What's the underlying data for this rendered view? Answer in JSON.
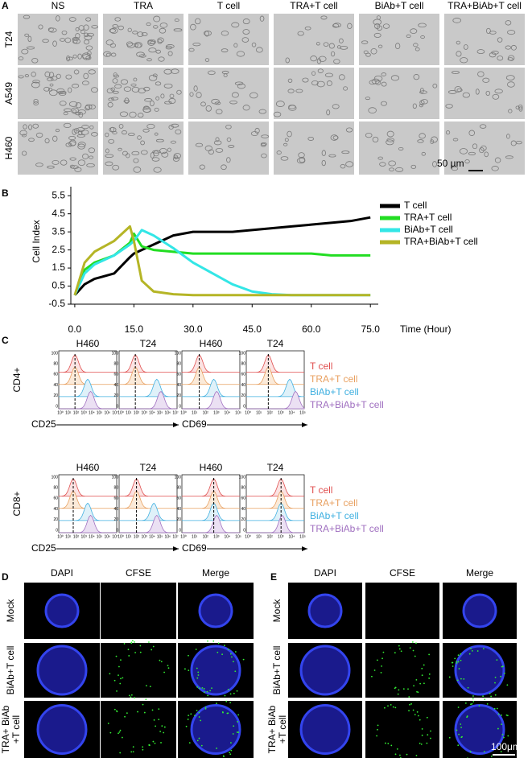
{
  "panel_labels": [
    "A",
    "B",
    "C",
    "D",
    "E"
  ],
  "panel_a": {
    "columns": [
      "NS",
      "TRA",
      "T cell",
      "TRA+T cell",
      "BiAb+T cell",
      "TRA+BiAb+T cell"
    ],
    "rows": [
      "T24",
      "A549",
      "H460"
    ],
    "scale_bar": "50 µm"
  },
  "chart_data": {
    "type": "line",
    "y_label": "Cell Index",
    "x_label": "Time (Hour)",
    "x": [
      0,
      2.5,
      5,
      10,
      14,
      15,
      17,
      20,
      25,
      30,
      35,
      40,
      45,
      50,
      55,
      60,
      65,
      70,
      75
    ],
    "series": [
      {
        "name": "T cell",
        "color": "#000000",
        "values": [
          0,
          0.6,
          0.9,
          1.2,
          2.1,
          2.3,
          2.5,
          2.8,
          3.3,
          3.5,
          3.5,
          3.5,
          3.6,
          3.7,
          3.8,
          3.9,
          4.0,
          4.1,
          4.3
        ]
      },
      {
        "name": "TRA+T cell",
        "color": "#22dd22",
        "values": [
          0,
          1.4,
          1.8,
          2.2,
          2.9,
          3.4,
          2.7,
          2.5,
          2.4,
          2.3,
          2.3,
          2.3,
          2.3,
          2.3,
          2.3,
          2.3,
          2.2,
          2.2,
          2.2
        ]
      },
      {
        "name": "BiAb+T cell",
        "color": "#33e6e6",
        "values": [
          0,
          1.2,
          1.7,
          2.2,
          2.8,
          3.0,
          3.6,
          3.3,
          2.6,
          1.8,
          1.2,
          0.6,
          0.2,
          0.05,
          0,
          0,
          0,
          0,
          0
        ]
      },
      {
        "name": "TRA+BiAb+T cell",
        "color": "#b5b526",
        "values": [
          0,
          1.8,
          2.4,
          3.0,
          3.8,
          3.0,
          0.8,
          0.2,
          0.05,
          0,
          0,
          0,
          0,
          0,
          0,
          0,
          0,
          0,
          0
        ]
      }
    ],
    "xlim": [
      -1,
      77
    ],
    "ylim": [
      -0.5,
      6
    ],
    "xticks": [
      {
        "value": 0,
        "label": "0.0"
      },
      {
        "value": 15,
        "label": "15.0"
      },
      {
        "value": 30,
        "label": "30.0"
      },
      {
        "value": 45,
        "label": "45.0"
      },
      {
        "value": 60,
        "label": "60.0"
      },
      {
        "value": 75,
        "label": "75.0"
      }
    ],
    "yticks": [
      -0.5,
      0.5,
      1.5,
      2.5,
      3.5,
      4.5,
      5.5
    ]
  },
  "panel_c": {
    "row_labels": [
      "CD4+",
      "CD8+"
    ],
    "columns": [
      "H460",
      "T24",
      "H460",
      "T24"
    ],
    "x_axes": [
      "CD25",
      "CD69"
    ],
    "legend": [
      "T cell",
      "TRA+T cell",
      "BiAb+T cell",
      "TRA+BiAb+T cell"
    ],
    "cd25_ticks": [
      "10⁰",
      "10¹",
      "10²",
      "10³",
      "10⁴",
      "10⁵",
      "10⁶",
      "10⁷"
    ],
    "cd69_ticks": [
      "10⁰",
      "10¹",
      "10²",
      "10³",
      "10⁴",
      "10⁵"
    ],
    "y_ticks": [
      "100",
      "80",
      "60",
      "40",
      "20",
      "0"
    ]
  },
  "panel_d": {
    "columns": [
      "DAPI",
      "CFSE",
      "Merge"
    ],
    "rows": [
      "Mock",
      "BiAb+T cell",
      [
        "TRA+ BiAb",
        "+T cell"
      ]
    ]
  },
  "panel_e": {
    "columns": [
      "DAPI",
      "CFSE",
      "Merge"
    ],
    "rows": [
      "Mock",
      "BiAb+T cell",
      [
        "TRA+ BiAb",
        "+T cell"
      ]
    ],
    "scale_bar": "100μm"
  }
}
